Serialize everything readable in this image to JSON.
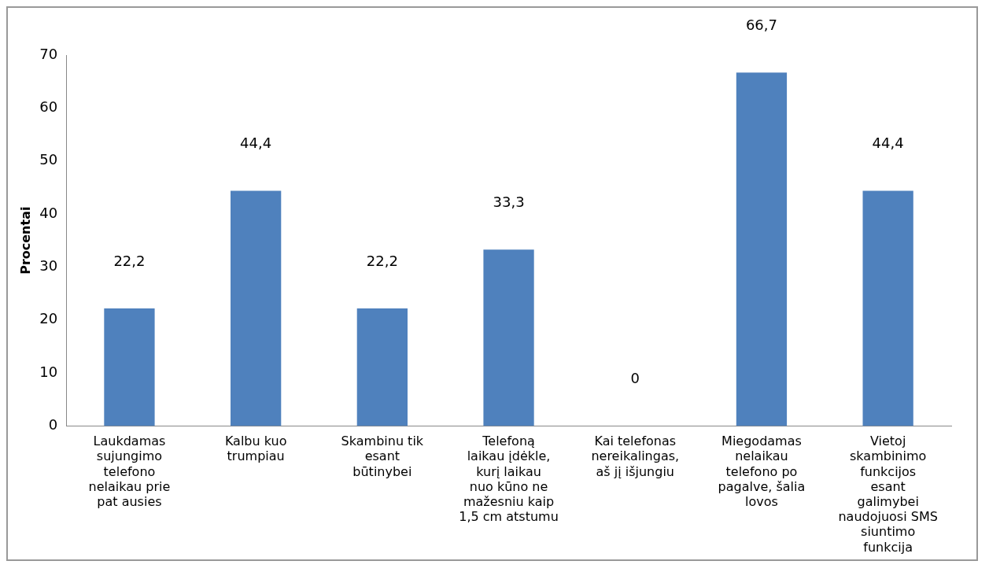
{
  "chart_data": {
    "type": "bar",
    "ylabel": "Procentai",
    "categories": [
      "Laukdamas sujungimo telefono nelaikau prie pat ausies",
      "Kalbu kuo trumpiau",
      "Skambinu tik esant būtinybei",
      "Telefoną laikau įdėkle, kurį laikau nuo kūno ne mažesniu kaip 1,5 cm atstumu",
      "Kai telefonas nereikalingas, aš jį išjungiu",
      "Miegodamas nelaikau telefono po pagalve, šalia lovos",
      "Vietoj skambinimo funkcijos esant galimybei naudojuosi SMS siuntimo funkcija"
    ],
    "values": [
      22.2,
      44.4,
      22.2,
      33.3,
      0,
      66.7,
      44.4
    ],
    "value_labels": [
      "22,2",
      "44,4",
      "22,2",
      "33,3",
      "0",
      "66,7",
      "44,4"
    ],
    "color": "#4f81bd",
    "ylim": [
      0,
      70
    ],
    "yticks": [
      0,
      10,
      20,
      30,
      40,
      50,
      60,
      70
    ],
    "grid": false,
    "legend": false
  }
}
